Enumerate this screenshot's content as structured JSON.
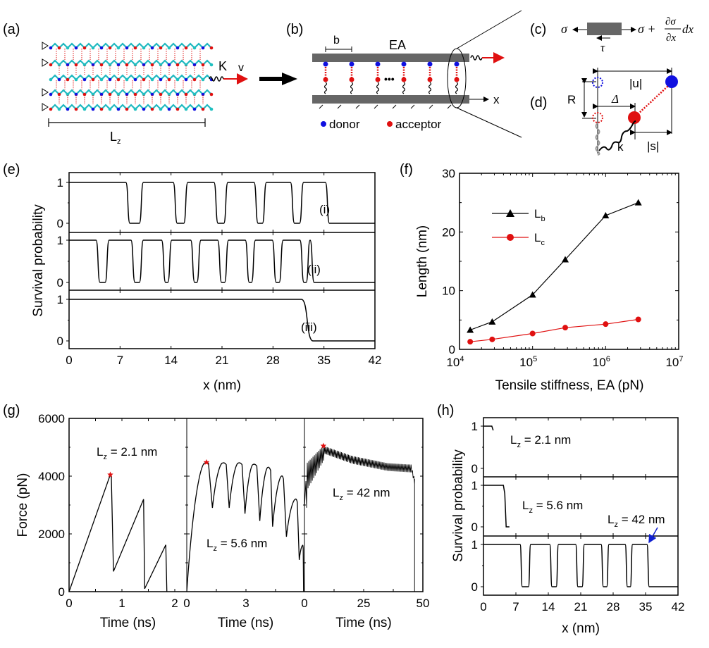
{
  "figure": {
    "panel_labels": [
      "(a)",
      "(b)",
      "(c)",
      "(d)",
      "(e)",
      "(f)",
      "(g)",
      "(h)"
    ],
    "colors": {
      "donor": "#1010e0",
      "acceptor": "#e01010",
      "bar": "#666666",
      "line": "#000000",
      "red_line": "#e01010",
      "arrow_blue": "#1020d0"
    }
  },
  "panel_a": {
    "spring_label": "K",
    "velocity_label": "v",
    "length_label": "L",
    "length_sub": "z"
  },
  "panel_b": {
    "spacing_label": "b",
    "stiffness_label": "EA",
    "ellipsis": "•••",
    "axis_label": "x",
    "legend": [
      {
        "label": "donor",
        "color": "#1010e0"
      },
      {
        "label": "acceptor",
        "color": "#e01010"
      }
    ]
  },
  "panel_c": {
    "left_label": "σ",
    "shear_label": "τ",
    "right_label_base": "σ +",
    "right_num": "∂σ",
    "right_den": "∂x",
    "right_tail": "dx"
  },
  "panel_d": {
    "u_label": "|u|",
    "R_label": "R",
    "delta_label": "Δ",
    "k_label": "k",
    "s_label": "|s|"
  },
  "chart_data": [
    {
      "id": "e",
      "type": "line",
      "title": "",
      "xlabel": "x (nm)",
      "ylabel": "Survival probability",
      "xlim": [
        0,
        42
      ],
      "x_ticks": [
        "0",
        "7",
        "14",
        "21",
        "28",
        "35",
        "42"
      ],
      "y_ticks": [
        "0",
        "1"
      ],
      "ylim": [
        -0.2,
        1.2
      ],
      "series": [
        {
          "name": "(i)",
          "drops": [
            [
              7.8,
              10.2
            ],
            [
              14.3,
              16.3
            ],
            [
              19.9,
              21.8
            ],
            [
              25.4,
              27.1
            ],
            [
              30.4,
              32.2
            ]
          ],
          "final_break": 35.2
        },
        {
          "name": "(ii)",
          "drops": [
            [
              3.7,
              5.5
            ],
            [
              8.5,
              10.2
            ],
            [
              12.7,
              14.1
            ],
            [
              16.7,
              18.1
            ],
            [
              20.4,
              21.9
            ],
            [
              24.2,
              25.6
            ],
            [
              27.9,
              29.4
            ],
            [
              31.7,
              33.1
            ]
          ],
          "final_break": 33.1
        },
        {
          "name": "(iii)",
          "drops": [],
          "final_break": 31.9
        }
      ]
    },
    {
      "id": "f",
      "type": "line",
      "title": "",
      "xlabel": "Tensile stiffness, EA (pN)",
      "ylabel": "Length (nm)",
      "xscale": "log",
      "xlim": [
        10000,
        10000000
      ],
      "ylim": [
        0,
        30
      ],
      "x_ticks": [
        "10^4",
        "10^5",
        "10^6",
        "10^7"
      ],
      "y_ticks": [
        "0",
        "10",
        "20",
        "30"
      ],
      "legend_position": "top-left",
      "x": [
        14000,
        28000,
        100000,
        280000,
        1000000,
        2800000
      ],
      "series": [
        {
          "name": "L_b",
          "label": "L",
          "sub": "b",
          "marker": "triangle",
          "color": "#000000",
          "values": [
            3.3,
            4.7,
            9.3,
            15.3,
            22.8,
            25.0
          ]
        },
        {
          "name": "L_c",
          "label": "L",
          "sub": "c",
          "marker": "circle",
          "color": "#e01010",
          "values": [
            1.3,
            1.7,
            2.7,
            3.7,
            4.3,
            5.1
          ]
        }
      ]
    },
    {
      "id": "g",
      "type": "line",
      "ylabel": "Force (pN)",
      "ylim": [
        0,
        6000
      ],
      "y_ticks": [
        "0",
        "2000",
        "4000",
        "6000"
      ],
      "subplots": [
        {
          "xlabel": "Time (ns)",
          "xlim": [
            0,
            1.95
          ],
          "x_ticks": [
            "0",
            "1",
            "2"
          ],
          "annotation": {
            "text": "L",
            "sub": "z",
            "rest": " = 2.1 nm"
          },
          "peak": {
            "t": 0.78,
            "f": 4050
          },
          "points": [
            [
              0,
              0
            ],
            [
              0.78,
              4050
            ],
            [
              0.8,
              3950
            ],
            [
              0.84,
              700
            ],
            [
              1.41,
              3200
            ],
            [
              1.43,
              100
            ],
            [
              1.83,
              1620
            ],
            [
              1.85,
              0
            ]
          ]
        },
        {
          "xlabel": "Time (ns)",
          "xlim": [
            0,
            5.95
          ],
          "x_ticks": [
            "0",
            "3"
          ],
          "annotation": {
            "text": "L",
            "sub": "z",
            "rest": " = 5.6 nm"
          },
          "peak": {
            "t": 1.0,
            "f": 4480
          },
          "teeth": [
            [
              0.0,
              0,
              0.9,
              4450,
              1.1,
              4450,
              1.3,
              2900
            ],
            [
              1.3,
              2900,
              1.8,
              4450,
              2.0,
              4400,
              2.15,
              2900
            ],
            [
              2.15,
              2900,
              2.6,
              4450,
              2.8,
              4400,
              2.95,
              2700
            ],
            [
              2.95,
              2700,
              3.35,
              4400,
              3.55,
              4350,
              3.7,
              2450
            ],
            [
              3.7,
              2450,
              4.1,
              4300,
              4.25,
              4200,
              4.35,
              2250
            ],
            [
              4.35,
              2250,
              4.8,
              4000,
              4.9,
              3900,
              5.05,
              1900
            ],
            [
              5.05,
              1900,
              5.5,
              3200,
              5.6,
              3100,
              5.7,
              1100
            ],
            [
              5.7,
              1100,
              5.87,
              1600,
              5.9,
              1500,
              5.92,
              0
            ]
          ]
        },
        {
          "xlabel": "Time (ns)",
          "xlim": [
            0,
            50
          ],
          "x_ticks": [
            "0",
            "25",
            "50"
          ],
          "annotation": {
            "text": "L",
            "sub": "z",
            "rest": " = 42 nm"
          },
          "peak": {
            "t": 8,
            "f": 5050
          },
          "envelope_top": [
            [
              0,
              2900
            ],
            [
              1,
              4450
            ],
            [
              8,
              5050
            ],
            [
              20,
              4700
            ],
            [
              35,
              4450
            ],
            [
              45,
              4400
            ],
            [
              46.5,
              3900
            ]
          ],
          "oscillation_depth": 600,
          "end_time": 46.5
        }
      ]
    },
    {
      "id": "h",
      "type": "line",
      "xlabel": "x (nm)",
      "ylabel": "Survival probability",
      "xlim": [
        0,
        42
      ],
      "ylim": [
        -0.2,
        1.2
      ],
      "x_ticks": [
        "0",
        "7",
        "14",
        "21",
        "28",
        "35",
        "42"
      ],
      "y_ticks": [
        "0",
        "1"
      ],
      "series": [
        {
          "name": "Lz=2.1",
          "annotation": {
            "text": "L",
            "sub": "z",
            "rest": " = 2.1 nm"
          },
          "points": [
            [
              0,
              1
            ],
            [
              1.8,
              1
            ],
            [
              2.1,
              0.9
            ]
          ]
        },
        {
          "name": "Lz=5.6",
          "annotation": {
            "text": "L",
            "sub": "z",
            "rest": " = 5.6 nm"
          },
          "points": [
            [
              0,
              1
            ],
            [
              4.3,
              1
            ],
            [
              4.6,
              0.8
            ],
            [
              4.9,
              0
            ],
            [
              5.6,
              0
            ]
          ]
        },
        {
          "name": "Lz=42",
          "annotation": {
            "text": "L",
            "sub": "z",
            "rest": " = 42 nm"
          },
          "drops": [
            [
              7.9,
              10.2
            ],
            [
              14.3,
              16.2
            ],
            [
              19.9,
              21.8
            ],
            [
              25.4,
              27.1
            ],
            [
              30.6,
              32.2
            ]
          ],
          "final_break": 35.3
        }
      ]
    }
  ]
}
